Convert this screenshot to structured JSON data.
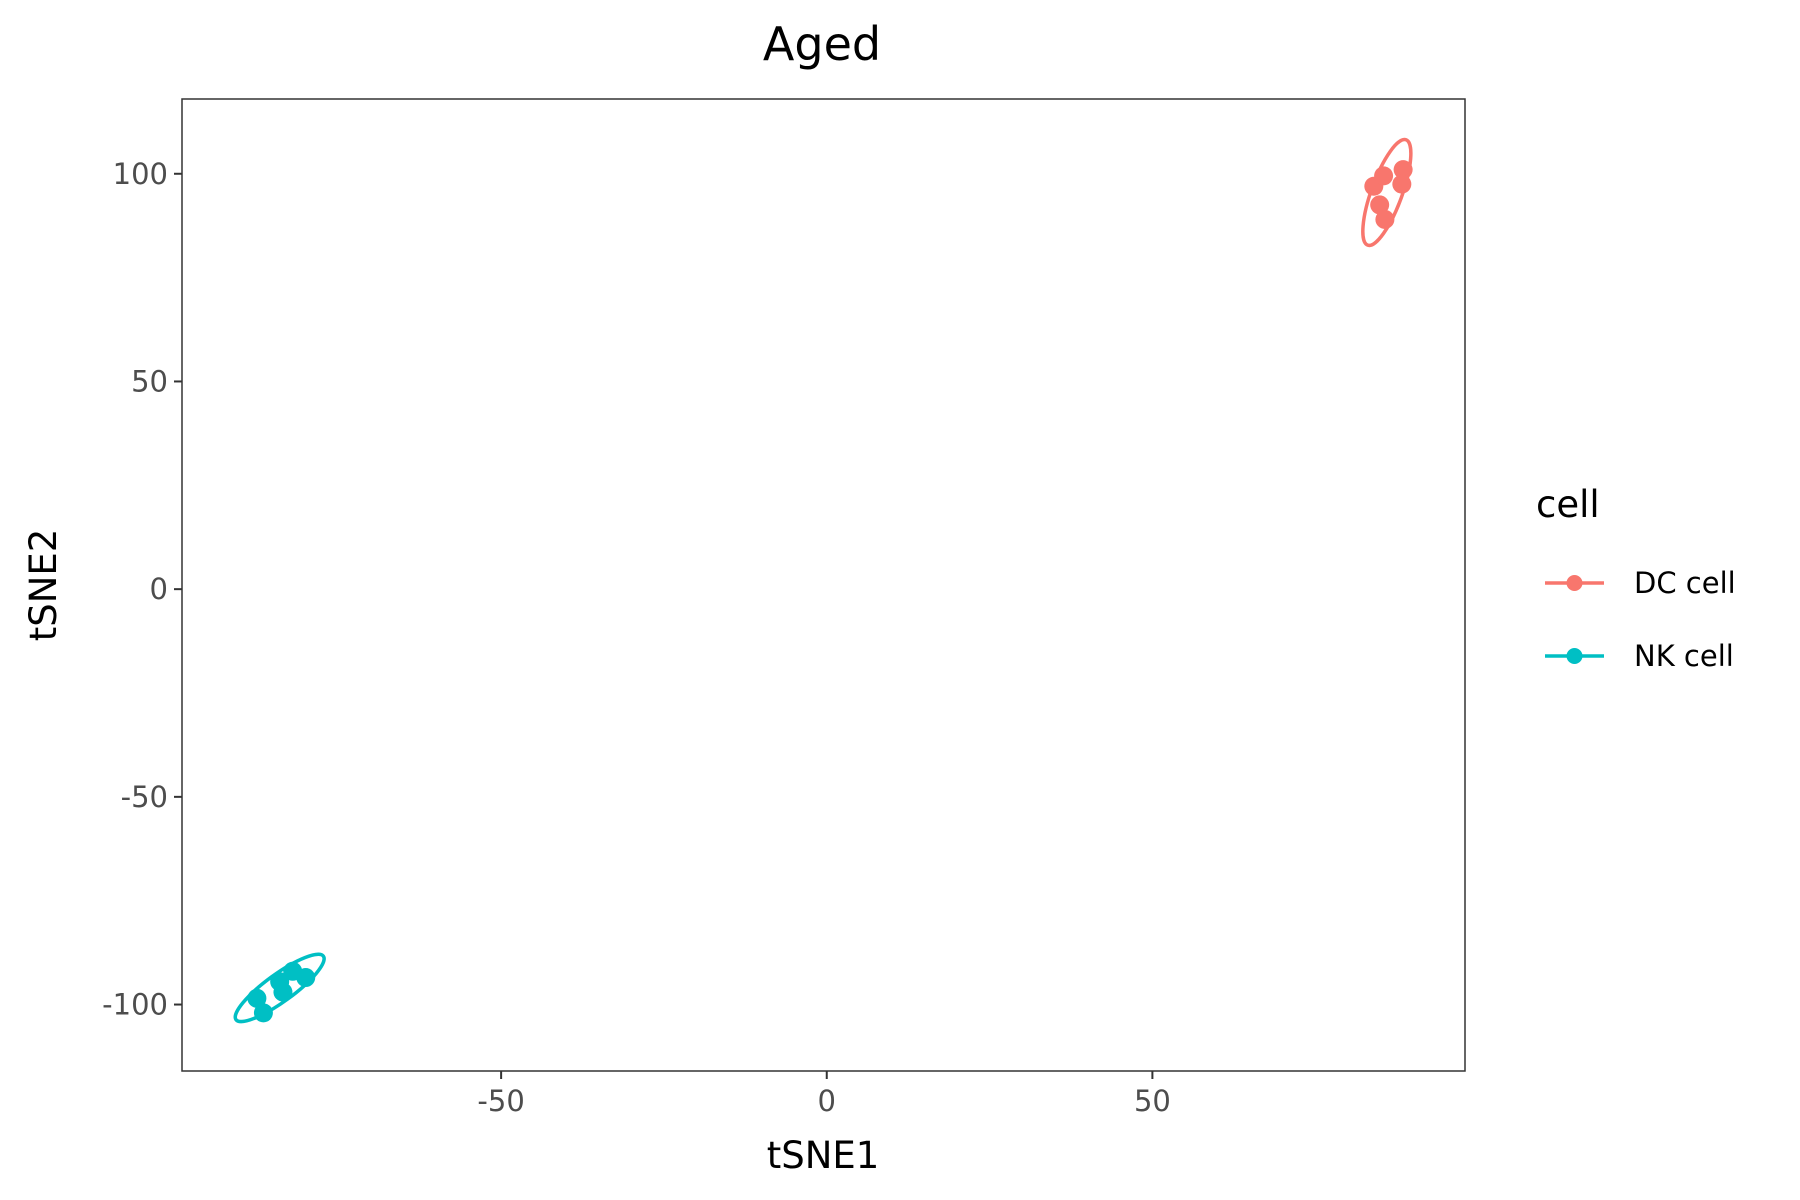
{
  "chart_data": {
    "type": "scatter",
    "title": "Aged",
    "xlabel": "tSNE1",
    "ylabel": "tSNE2",
    "xlim": [
      -99,
      98
    ],
    "ylim": [
      -116,
      118
    ],
    "xticks": [
      -50,
      0,
      50
    ],
    "xtick_labels": [
      "-50",
      "0",
      "50"
    ],
    "yticks": [
      100,
      50,
      0,
      -50,
      -100
    ],
    "ytick_labels": [
      "100",
      "50",
      "0",
      "-50",
      "-100"
    ],
    "grid": false,
    "legend": {
      "title": "cell",
      "placement": "right"
    },
    "series": [
      {
        "name": "DC cell",
        "color": "#F8766D",
        "points": [
          {
            "x": 84.0,
            "y": 97.0
          },
          {
            "x": 85.5,
            "y": 99.5
          },
          {
            "x": 88.5,
            "y": 101.0
          },
          {
            "x": 88.3,
            "y": 97.5
          },
          {
            "x": 84.9,
            "y": 92.5
          },
          {
            "x": 85.7,
            "y": 89.0
          }
        ],
        "ellipse": {
          "cx": 86.0,
          "cy": 95.5,
          "rx": 13.5,
          "ry": 3.7,
          "angle_deg": 70
        }
      },
      {
        "name": "NK cell",
        "color": "#00BFC4",
        "points": [
          {
            "x": -87.5,
            "y": -98.5
          },
          {
            "x": -84.0,
            "y": -94.5
          },
          {
            "x": -83.5,
            "y": -97.0
          },
          {
            "x": -82.0,
            "y": -92.0
          },
          {
            "x": -80.0,
            "y": -93.5
          },
          {
            "x": -86.5,
            "y": -102.0
          }
        ],
        "ellipse": {
          "cx": -84.0,
          "cy": -96.0,
          "rx": 13.0,
          "ry": 3.3,
          "angle_deg": 36
        }
      }
    ]
  }
}
